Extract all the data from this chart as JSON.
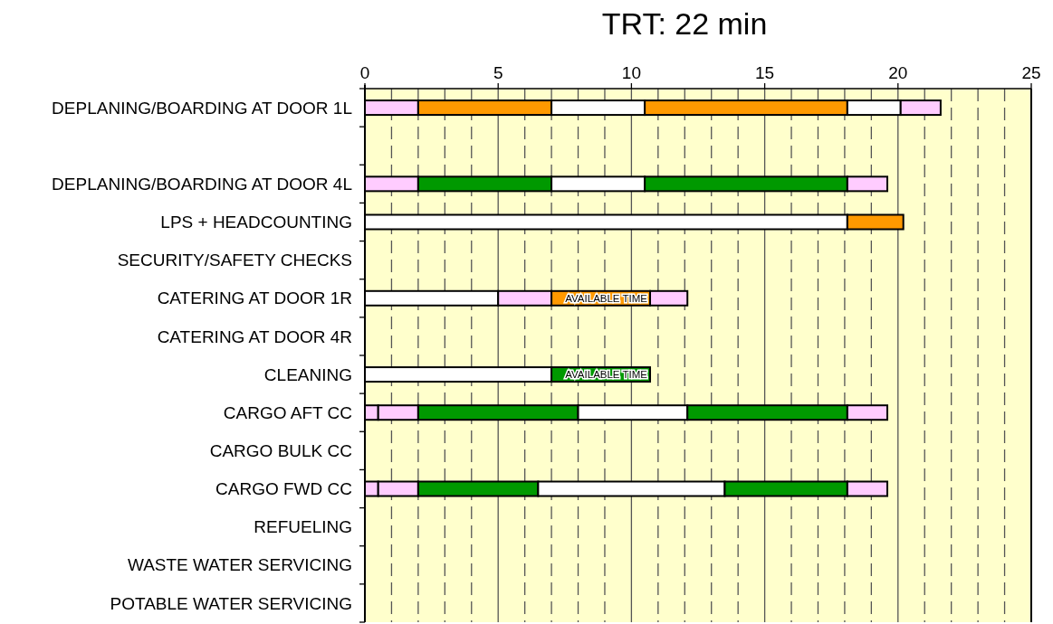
{
  "chart_data": {
    "type": "bar",
    "title": "TRT: 22 min",
    "orientation": "horizontal",
    "stacked": true,
    "grid": "x",
    "categories": [
      "DEPLANING/BOARDING AT DOOR 1L",
      null,
      "DEPLANING/BOARDING AT DOOR 4L",
      "LPS + HEADCOUNTING",
      "SECURITY/SAFETY CHECKS",
      "CATERING AT DOOR 1R",
      "CATERING AT DOOR 4R",
      "CLEANING",
      "CARGO AFT CC",
      "CARGO BULK CC",
      "CARGO FWD CC",
      "REFUELING",
      "WASTE WATER SERVICING",
      "POTABLE WATER SERVICING"
    ],
    "series": [
      {
        "values": [
          2,
          null,
          2,
          18.1,
          null,
          5,
          null,
          7,
          0.5,
          null,
          0.5,
          null,
          null,
          null
        ],
        "colors": [
          "#ffccff",
          null,
          "#ffccff",
          "#ffffff",
          null,
          "#ffffff",
          null,
          "#ffffff",
          "#ffccff",
          null,
          "#ffccff",
          null,
          null,
          null
        ]
      },
      {
        "values": [
          5,
          null,
          5,
          2.1,
          null,
          2,
          null,
          3.7,
          1.5,
          null,
          1.5,
          null,
          null,
          null
        ],
        "colors": [
          "#ff9900",
          null,
          "#009900",
          "#ff9900",
          null,
          "#ffccff",
          null,
          "#009900",
          "#ffccff",
          null,
          "#ffccff",
          null,
          null,
          null
        ]
      },
      {
        "values": [
          3.5,
          null,
          3.5,
          null,
          null,
          3.7,
          null,
          null,
          6,
          null,
          4.5,
          null,
          null,
          null
        ],
        "colors": [
          "#ffffff",
          null,
          "#ffffff",
          null,
          null,
          "#ff9900",
          null,
          null,
          "#009900",
          null,
          "#009900",
          null,
          null,
          null
        ]
      },
      {
        "values": [
          7.6,
          null,
          7.6,
          null,
          null,
          1.4,
          null,
          null,
          4.1,
          null,
          7,
          null,
          null,
          null
        ],
        "colors": [
          "#ff9900",
          null,
          "#009900",
          null,
          null,
          "#ffccff",
          null,
          null,
          "#ffffff",
          null,
          "#ffffff",
          null,
          null,
          null
        ]
      },
      {
        "values": [
          2,
          null,
          1.5,
          null,
          null,
          null,
          null,
          null,
          6,
          null,
          4.6,
          null,
          null,
          null
        ],
        "colors": [
          "#ffffff",
          null,
          "#ffccff",
          null,
          null,
          null,
          null,
          null,
          "#009900",
          null,
          "#009900",
          null,
          null,
          null
        ]
      },
      {
        "values": [
          1.5,
          null,
          null,
          null,
          null,
          null,
          null,
          null,
          1.5,
          null,
          1.5,
          null,
          null,
          null
        ],
        "colors": [
          "#ffccff",
          null,
          null,
          null,
          null,
          null,
          null,
          null,
          "#ffccff",
          null,
          "#ffccff",
          null,
          null,
          null
        ]
      }
    ],
    "xlim": [
      0,
      25
    ],
    "xticks": [
      0,
      {
        "value": 1,
        "label": null
      },
      {
        "value": 2,
        "label": null
      },
      {
        "value": 3,
        "label": null
      },
      {
        "value": 4,
        "label": null
      },
      5,
      {
        "value": 6,
        "label": null
      },
      {
        "value": 7,
        "label": null
      },
      {
        "value": 8,
        "label": null
      },
      {
        "value": 9,
        "label": null
      },
      10,
      {
        "value": 11,
        "label": null
      },
      {
        "value": 12,
        "label": null
      },
      {
        "value": 13,
        "label": null
      },
      {
        "value": 14,
        "label": null
      },
      15,
      {
        "value": 16,
        "label": null
      },
      {
        "value": 17,
        "label": null
      },
      {
        "value": 18,
        "label": null
      },
      {
        "value": 19,
        "label": null
      },
      20,
      {
        "value": 21,
        "label": null
      },
      {
        "value": 22,
        "label": null
      },
      {
        "value": 23,
        "label": null
      },
      {
        "value": 24,
        "label": null
      },
      25
    ],
    "annotations": [
      {
        "text": "AVAILABLE TIME",
        "x": 10.7,
        "y": "CATERING AT DOOR 1R"
      },
      {
        "text": "AVAILABLE TIME",
        "x": 10.7,
        "y": "CLEANING"
      }
    ]
  }
}
